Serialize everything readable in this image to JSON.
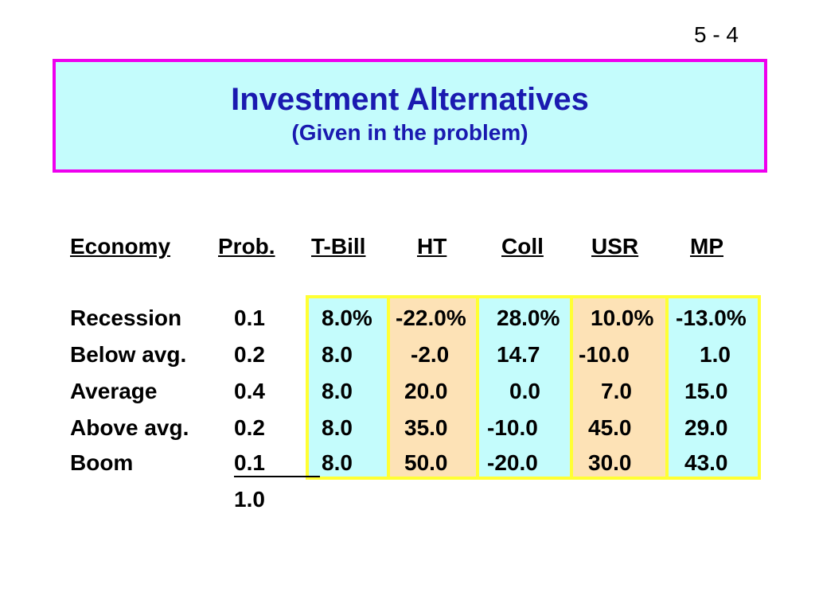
{
  "slide_number": "5 - 4",
  "title": "Investment Alternatives",
  "subtitle": "(Given in the problem)",
  "table": {
    "headers": [
      "Economy",
      "Prob.",
      "T-Bill",
      "HT",
      "Coll",
      "USR",
      "MP"
    ],
    "rows": [
      {
        "economy": "Recession",
        "prob": "0.1",
        "tbill": "8.0%",
        "ht": "-22.0%",
        "coll": "28.0%",
        "usr": "10.0%",
        "mp": "-13.0%"
      },
      {
        "economy": "Below avg.",
        "prob": "0.2",
        "tbill": "8.0",
        "ht": "-2.0",
        "coll": "14.7",
        "usr": "-10.0",
        "mp": "1.0"
      },
      {
        "economy": "Average",
        "prob": "0.4",
        "tbill": "8.0",
        "ht": "20.0",
        "coll": "0.0",
        "usr": "7.0",
        "mp": "15.0"
      },
      {
        "economy": "Above avg.",
        "prob": "0.2",
        "tbill": "8.0",
        "ht": "35.0",
        "coll": "-10.0",
        "usr": "45.0",
        "mp": "29.0"
      },
      {
        "economy": "Boom",
        "prob": "0.1",
        "tbill": "8.0",
        "ht": "50.0",
        "coll": "-20.0",
        "usr": "30.0",
        "mp": "43.0"
      }
    ],
    "prob_total": "1.0"
  },
  "colors": {
    "title_box_fill": "#c4fcfc",
    "title_box_border": "#ee00ee",
    "title_text": "#1a1ab0",
    "column_border": "#ffff33",
    "column_fill_cyan": "#c4fcfc",
    "column_fill_tan": "#fde2b6"
  }
}
